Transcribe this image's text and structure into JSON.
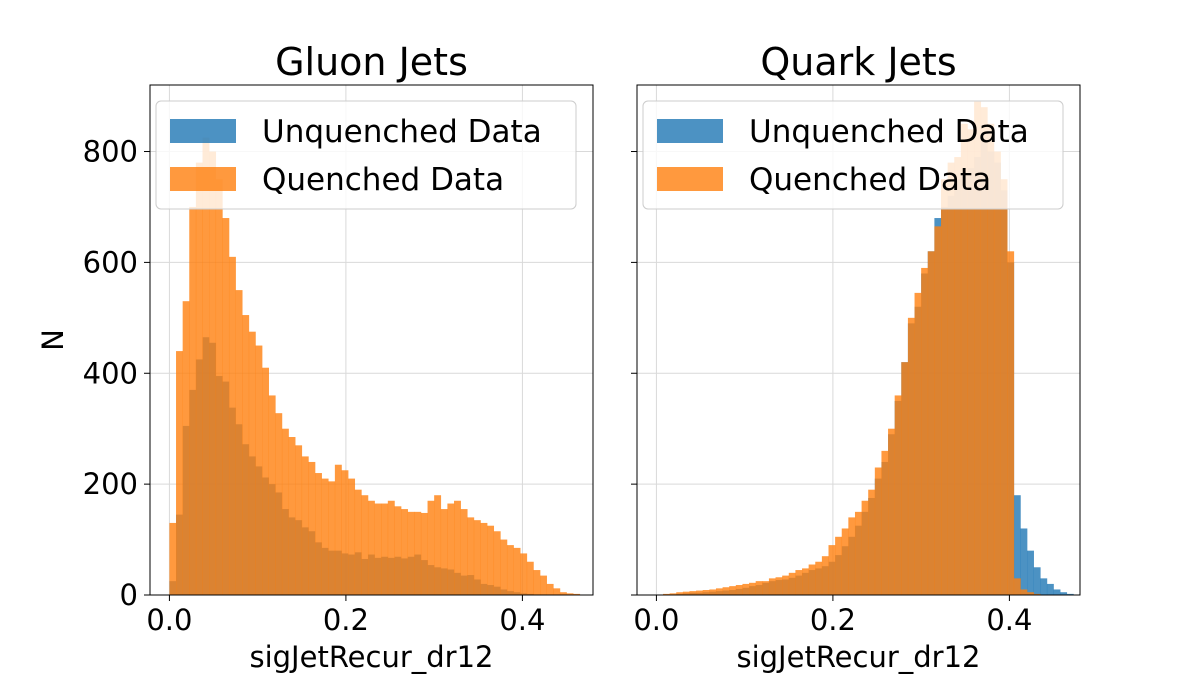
{
  "chart_data": [
    {
      "type": "histogram",
      "title": "Gluon Jets",
      "xlabel": "sigJetRecur_dr12",
      "ylabel": "N",
      "xlim": [
        -0.022,
        0.48
      ],
      "ylim": [
        0,
        920
      ],
      "xticks": [
        0.0,
        0.2,
        0.4
      ],
      "xtick_labels": [
        "0.0",
        "0.2",
        "0.4"
      ],
      "yticks": [
        0,
        200,
        400,
        600,
        800
      ],
      "ytick_labels": [
        "0",
        "200",
        "400",
        "600",
        "800"
      ],
      "grid": true,
      "legend": "top-left",
      "bin_start": 0.0,
      "bin_width": 0.0075,
      "series": [
        {
          "name": "Unquenched Data",
          "color": "#1f77b4",
          "values": [
            25,
            145,
            305,
            370,
            425,
            465,
            455,
            395,
            385,
            338,
            308,
            272,
            250,
            232,
            212,
            200,
            185,
            155,
            140,
            135,
            122,
            115,
            95,
            85,
            80,
            80,
            75,
            73,
            77,
            65,
            73,
            67,
            69,
            67,
            69,
            66,
            69,
            73,
            63,
            54,
            50,
            48,
            46,
            40,
            35,
            36,
            28,
            20,
            18,
            15,
            10,
            7,
            5,
            3,
            2,
            1,
            1,
            0,
            0,
            0
          ]
        },
        {
          "name": "Quenched Data",
          "color": "#ff7f0e",
          "values": [
            130,
            440,
            530,
            700,
            780,
            825,
            800,
            750,
            680,
            610,
            550,
            505,
            475,
            450,
            410,
            360,
            328,
            300,
            285,
            270,
            250,
            240,
            220,
            210,
            205,
            235,
            225,
            210,
            190,
            180,
            170,
            165,
            165,
            170,
            160,
            155,
            150,
            150,
            148,
            170,
            180,
            155,
            165,
            170,
            155,
            140,
            135,
            130,
            125,
            115,
            100,
            90,
            85,
            75,
            60,
            45,
            35,
            20,
            12,
            5,
            3,
            2,
            0,
            0
          ]
        }
      ]
    },
    {
      "type": "histogram",
      "title": "Quark Jets",
      "xlabel": "sigJetRecur_dr12",
      "ylabel": "",
      "xlim": [
        -0.022,
        0.48
      ],
      "ylim": [
        0,
        920
      ],
      "xticks": [
        0.0,
        0.2,
        0.4
      ],
      "xtick_labels": [
        "0.0",
        "0.2",
        "0.4"
      ],
      "yticks": [
        0,
        200,
        400,
        600,
        800
      ],
      "ytick_labels": [
        "",
        "",
        "",
        "",
        ""
      ],
      "grid": true,
      "legend": "top",
      "bin_start": 0.0,
      "bin_width": 0.0075,
      "series": [
        {
          "name": "Unquenched Data",
          "color": "#1f77b4",
          "values": [
            0,
            1,
            1,
            2,
            3,
            4,
            4,
            5,
            6,
            7,
            8,
            9,
            11,
            13,
            16,
            18,
            22,
            25,
            27,
            28,
            31,
            35,
            40,
            45,
            48,
            52,
            60,
            72,
            88,
            105,
            125,
            150,
            175,
            210,
            240,
            290,
            350,
            420,
            490,
            520,
            580,
            620,
            680,
            700,
            720,
            750,
            760,
            770,
            790,
            820,
            800,
            780,
            730,
            600,
            180,
            120,
            80,
            50,
            30,
            20,
            10,
            5,
            2,
            0
          ]
        },
        {
          "name": "Quenched Data",
          "color": "#ff7f0e",
          "values": [
            0,
            2,
            3,
            5,
            6,
            7,
            8,
            9,
            10,
            12,
            14,
            16,
            18,
            20,
            22,
            25,
            25,
            30,
            32,
            35,
            40,
            45,
            48,
            55,
            60,
            70,
            90,
            105,
            120,
            140,
            150,
            170,
            190,
            230,
            260,
            300,
            360,
            420,
            500,
            545,
            590,
            620,
            665,
            750,
            780,
            790,
            850,
            840,
            890,
            880,
            850,
            800,
            750,
            620,
            30,
            10,
            5,
            2,
            0,
            0,
            0,
            0,
            0,
            0
          ]
        }
      ]
    }
  ]
}
